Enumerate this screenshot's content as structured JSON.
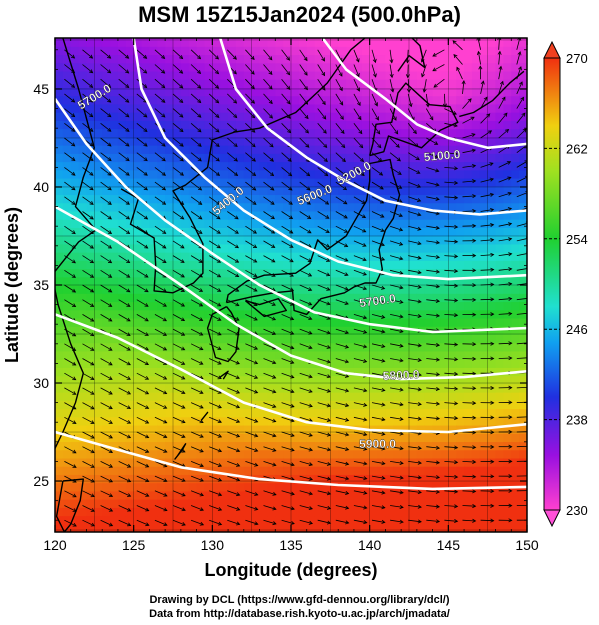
{
  "title": "MSM 15Z15Jan2024 (500.0hPa)",
  "map": {
    "xlabel": "Longitude (degrees)",
    "ylabel": "Latitude  (degrees)",
    "lon_range": [
      120,
      150
    ],
    "lat_range": [
      22.4,
      47.6
    ],
    "lon_ticks": [
      "120",
      "125",
      "130",
      "135",
      "140",
      "145",
      "150"
    ],
    "lat_ticks": [
      "25",
      "30",
      "35",
      "40",
      "45"
    ],
    "colorbar": {
      "range": [
        230,
        270
      ],
      "tick_labels": [
        "270",
        "262",
        "254",
        "246",
        "238",
        "230"
      ]
    },
    "contour_labels": [
      "5700.0",
      "5400.0",
      "5100.0",
      "5200.0",
      "5600.0",
      "5700.0",
      "5800.0",
      "5900.0"
    ],
    "colors": {
      "cold": "#8800cc",
      "warm": "#ee2200",
      "contour": "#ffffff",
      "coast": "#000000"
    }
  },
  "credits": {
    "line1": "Drawing by DCL (https://www.gfd-dennou.org/library/dcl/)",
    "line2": "Data from http://database.rish.kyoto-u.ac.jp/arch/jmadata/"
  }
}
